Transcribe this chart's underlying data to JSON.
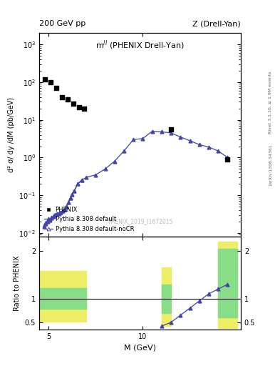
{
  "title_main": "m$^{ll}$ (PHENIX Drell-Yan)",
  "top_left_label": "200 GeV pp",
  "top_right_label": "Z (Drell-Yan)",
  "right_label_top": "Rivet 3.1.10, ≥ 1.9M events",
  "right_label_bottom": "[arXiv:1306.3436]",
  "watermark": "PHENIX_2019_I1672015",
  "ylabel_main": "d² σ/ dy /dM (pb/GeV)",
  "ylabel_ratio": "Ratio to PHENIX",
  "xlabel": "M (GeV)",
  "phenix_x": [
    4.8,
    5.1,
    5.4,
    5.7,
    6.0,
    6.3,
    6.6,
    6.9,
    11.5,
    14.5
  ],
  "phenix_y": [
    120,
    100,
    70,
    40,
    35,
    27,
    22,
    20,
    5.5,
    0.9
  ],
  "pythia_x": [
    4.75,
    4.85,
    4.95,
    5.05,
    5.15,
    5.25,
    5.35,
    5.45,
    5.55,
    5.65,
    5.75,
    5.85,
    5.95,
    6.05,
    6.15,
    6.25,
    6.35,
    6.55,
    6.75,
    7.0,
    7.5,
    8.0,
    8.5,
    9.0,
    9.5,
    10.0,
    10.5,
    11.0,
    11.5,
    12.0,
    12.5,
    13.0,
    13.5,
    14.0,
    14.5
  ],
  "pythia_y": [
    0.015,
    0.018,
    0.02,
    0.022,
    0.025,
    0.027,
    0.03,
    0.032,
    0.033,
    0.035,
    0.038,
    0.042,
    0.05,
    0.065,
    0.085,
    0.105,
    0.13,
    0.2,
    0.25,
    0.3,
    0.35,
    0.5,
    0.8,
    1.5,
    3.0,
    3.2,
    5.0,
    4.8,
    4.5,
    3.5,
    2.8,
    2.2,
    1.9,
    1.5,
    1.0
  ],
  "pythia_noCR_x": [
    4.75,
    4.85,
    4.95,
    5.05,
    5.15,
    5.25,
    5.35,
    5.45,
    5.55,
    5.65,
    5.75,
    5.85,
    5.95,
    6.05,
    6.15,
    6.25,
    6.35,
    6.55,
    6.75
  ],
  "pythia_noCR_y": [
    0.016,
    0.019,
    0.021,
    0.023,
    0.026,
    0.028,
    0.031,
    0.033,
    0.034,
    0.036,
    0.039,
    0.043,
    0.051,
    0.066,
    0.086,
    0.107,
    0.132,
    0.202,
    0.252
  ],
  "ratio_line_x": [
    11.0,
    11.5,
    12.0,
    12.5,
    13.0,
    13.5,
    14.0,
    14.5
  ],
  "ratio_line_y": [
    0.42,
    0.5,
    0.65,
    0.8,
    0.95,
    1.1,
    1.2,
    1.3
  ],
  "ratio_band1_xmin": 4.5,
  "ratio_band1_xmax": 7.0,
  "ratio_band1_green_ylow": 0.78,
  "ratio_band1_green_yhigh": 1.22,
  "ratio_band1_yellow_ylow": 0.52,
  "ratio_band1_yellow_yhigh": 1.58,
  "ratio_band2_xmin": 11.0,
  "ratio_band2_xmax": 11.5,
  "ratio_band2_green_ylow": 0.7,
  "ratio_band2_green_yhigh": 1.3,
  "ratio_band2_yellow_ylow": 0.42,
  "ratio_band2_yellow_yhigh": 1.65,
  "ratio_band3_xmin": 14.0,
  "ratio_band3_xmax": 15.0,
  "ratio_band3_green_ylow": 0.6,
  "ratio_band3_green_yhigh": 2.05,
  "ratio_band3_yellow_ylow": 0.38,
  "ratio_band3_yellow_yhigh": 2.2,
  "line_color": "#4444aa",
  "green_color": "#88dd88",
  "yellow_color": "#eeee66",
  "ylim_main": [
    0.008,
    2000
  ],
  "ylim_ratio": [
    0.35,
    2.3
  ],
  "xlim": [
    4.5,
    15.2
  ]
}
